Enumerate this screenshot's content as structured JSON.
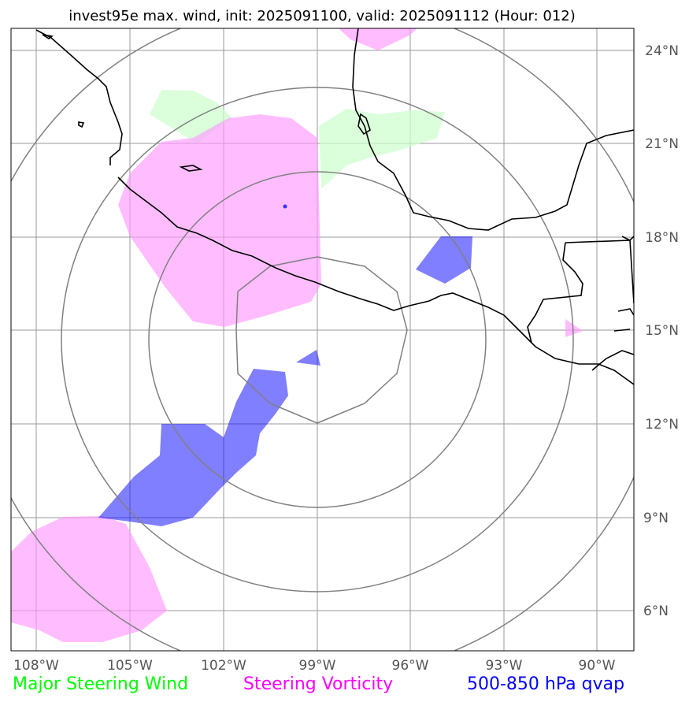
{
  "title": "invest95e max. wind, init: 2025091100, valid: 2025091112 (Hour: 012)",
  "lon_labels": [
    "108°W",
    "105°W",
    "102°W",
    "99°W",
    "96°W",
    "93°W",
    "90°W"
  ],
  "lat_labels": [
    "24°N",
    "21°N",
    "18°N",
    "15°N",
    "12°N",
    "9°N",
    "6°N"
  ],
  "legend": [
    {
      "label": "Major Steering Wind",
      "color": "#00ff00"
    },
    {
      "label": "Steering Vorticity",
      "color": "#ff00ff"
    },
    {
      "label": "500-850 hPa qvap",
      "color": "#0000ff"
    }
  ],
  "colors": {
    "wind_fill": "#ccffcc",
    "vorticity_fill": "#ff99ff",
    "qvap_fill": "#0000ff",
    "grid": "#999999",
    "range_ring": "#808080",
    "coastline": "#000000"
  }
}
